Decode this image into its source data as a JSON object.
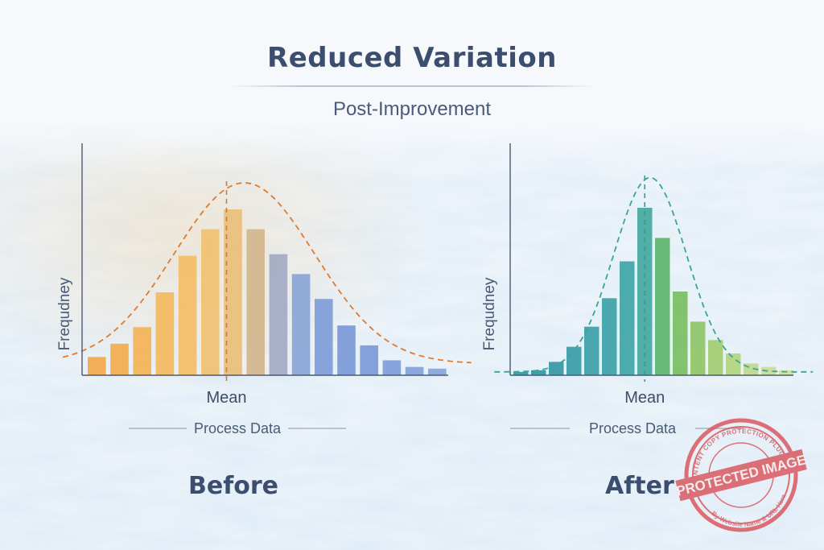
{
  "header": {
    "title": "Reduced Variation",
    "subtitle": "Post-Improvement"
  },
  "chart_data": [
    {
      "type": "bar",
      "panel": "Before",
      "ylabel": "Frequdney",
      "xlabel": "Process Data",
      "mean_label": "Mean",
      "mean_index": 6,
      "values": [
        11,
        19,
        29,
        50,
        72,
        88,
        100,
        88,
        73,
        61,
        46,
        30,
        18,
        9,
        5,
        4
      ],
      "ylim": [
        0,
        100
      ],
      "colors": [
        "#f2a84a",
        "#f2ad4e",
        "#f3b355",
        "#f4b95e",
        "#f3bd66",
        "#f0c070",
        "#e9be78",
        "#d3b68c",
        "#a3aac3",
        "#8aa4d6",
        "#7e9dd8",
        "#7a99d7",
        "#7b9ad8",
        "#7e9dd9",
        "#83a1da",
        "#88a5db"
      ],
      "curve_color": "#e07b2e",
      "mean_line_color": "#d6783a",
      "curve": {
        "mean_index": 6.5,
        "sd_bars": 3.1,
        "peak": 116,
        "baseline": 7
      },
      "axis_color": "#4d5a70"
    },
    {
      "type": "bar",
      "panel": "After",
      "ylabel": "Frequdney",
      "xlabel": "Process Data",
      "mean_label": "Mean",
      "mean_index": 7,
      "values": [
        2,
        3,
        8,
        17,
        29,
        46,
        68,
        100,
        82,
        50,
        32,
        21,
        13,
        7,
        5,
        3
      ],
      "ylim": [
        0,
        100
      ],
      "colors": [
        "#2f9aa5",
        "#3097a3",
        "#3498a4",
        "#3a9ca7",
        "#3d9fa8",
        "#3ea2a8",
        "#3fa5a6",
        "#44a99f",
        "#5db56d",
        "#79be63",
        "#8fc667",
        "#a1cd72",
        "#b2d47e",
        "#bfd98a",
        "#c8dd95",
        "#d0e19f"
      ],
      "curve_color": "#38a696",
      "mean_line_color": "#3a9a8c",
      "curve": {
        "mean_index": 7.3,
        "sd_bars": 2.05,
        "peak": 118,
        "baseline": 2
      },
      "axis_color": "#4d5a70"
    }
  ],
  "stamp": {
    "text": "PROTECTED IMAGE",
    "top_text": "CONTENT COPY PROTECTION PLUGIN",
    "bottom_text": "By Website Name & URL Here",
    "color": "#d9535b"
  }
}
